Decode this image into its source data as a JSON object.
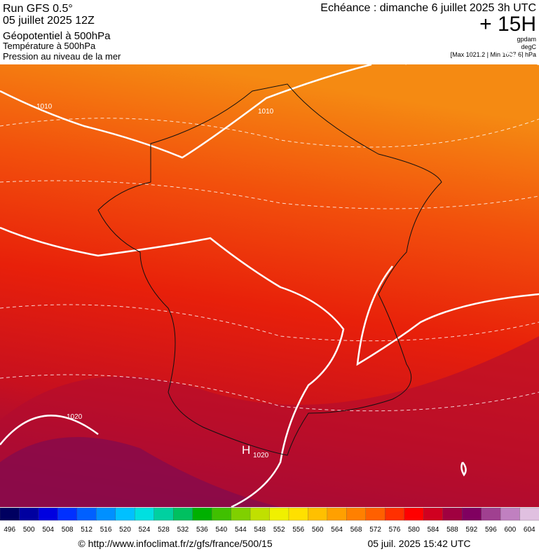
{
  "header": {
    "run": "Run GFS 0.5°",
    "date": "05 juillet 2025 12Z",
    "field1": "Géopotentiel à 500hPa",
    "field2": "Température à 500hPa",
    "field3": "Pression au niveau de la mer",
    "echeance": "Echéance : dimanche 6 juillet 2025 3h UTC",
    "lead": "+ 15H",
    "unit1": "gpdam",
    "unit2": "degC",
    "range": "[Max 1021.2 | Min 1007.6] hPa"
  },
  "map": {
    "labels": [
      "1010",
      "1010",
      "1020",
      "H",
      "1020"
    ]
  },
  "legend": {
    "values": [
      496,
      500,
      504,
      508,
      512,
      516,
      520,
      524,
      528,
      532,
      536,
      540,
      544,
      548,
      552,
      556,
      560,
      564,
      568,
      572,
      576,
      580,
      584,
      588,
      592,
      596,
      600,
      604
    ],
    "colors": [
      "#000060",
      "#0000a0",
      "#0000e0",
      "#0030ff",
      "#0060ff",
      "#0090ff",
      "#00c0ff",
      "#00e0e0",
      "#00d0a0",
      "#00c060",
      "#00b000",
      "#40c000",
      "#80d000",
      "#c0e000",
      "#f0f000",
      "#ffe000",
      "#ffc000",
      "#ffa000",
      "#ff8000",
      "#ff6000",
      "#ff3000",
      "#ff0000",
      "#d00020",
      "#a00040",
      "#800060",
      "#a04090",
      "#c080c0",
      "#e0c0e0"
    ]
  },
  "footer": {
    "source": "© http://www.infoclimat.fr/z/gfs/france/500/15",
    "time": "05 juil. 2025 15:42 UTC"
  }
}
